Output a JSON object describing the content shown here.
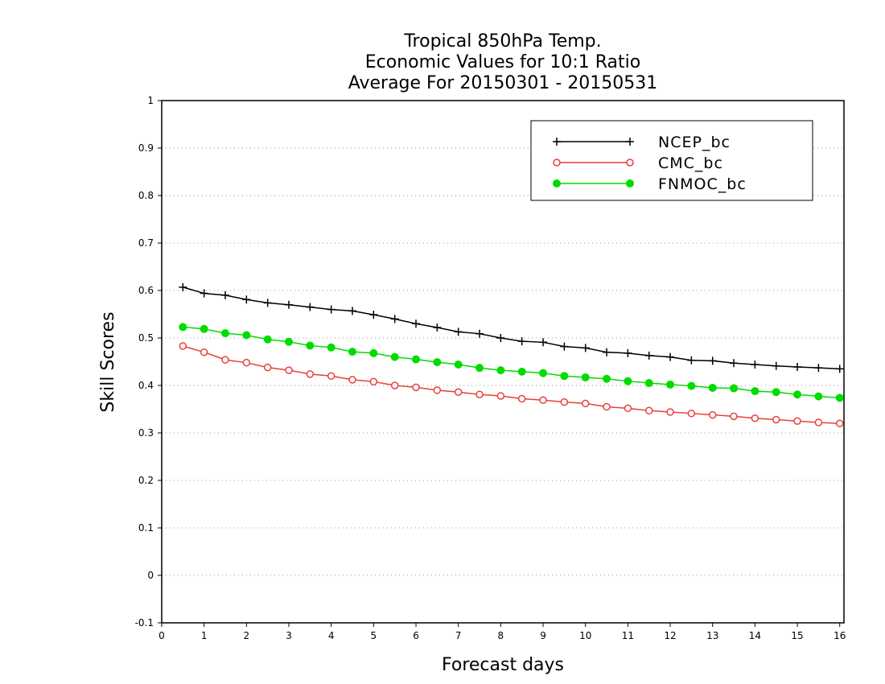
{
  "chart_data": {
    "type": "line",
    "title": [
      "Tropical 850hPa Temp.",
      "Economic Values for 10:1 Ratio",
      "Average For 20150301 - 20150531"
    ],
    "xlabel": "Forecast days",
    "ylabel": "Skill Scores",
    "xlim": [
      0,
      16.1
    ],
    "ylim": [
      -0.1,
      1
    ],
    "xticks": [
      0,
      1,
      2,
      3,
      4,
      5,
      6,
      7,
      8,
      9,
      10,
      11,
      12,
      13,
      14,
      15,
      16
    ],
    "yticks": [
      -0.1,
      0,
      0.1,
      0.2,
      0.3,
      0.4,
      0.5,
      0.6,
      0.7,
      0.8,
      0.9,
      1
    ],
    "ytick_labels": [
      "-0.1",
      "0",
      "0.1",
      "0.2",
      "0.3",
      "0.4",
      "0.5",
      "0.6",
      "0.7",
      "0.8",
      "0.9",
      "1"
    ],
    "grid": "horizontal dotted",
    "legend_position": "top-right",
    "x": [
      0.5,
      1,
      1.5,
      2,
      2.5,
      3,
      3.5,
      4,
      4.5,
      5,
      5.5,
      6,
      6.5,
      7,
      7.5,
      8,
      8.5,
      9,
      9.5,
      10,
      10.5,
      11,
      11.5,
      12,
      12.5,
      13,
      13.5,
      14,
      14.5,
      15,
      15.5,
      16
    ],
    "series": [
      {
        "name": "NCEP_bc",
        "color": "#000000",
        "marker": "plus",
        "values": [
          0.607,
          0.594,
          0.59,
          0.581,
          0.574,
          0.57,
          0.565,
          0.56,
          0.557,
          0.549,
          0.54,
          0.53,
          0.522,
          0.513,
          0.509,
          0.5,
          0.493,
          0.491,
          0.482,
          0.479,
          0.47,
          0.468,
          0.463,
          0.46,
          0.453,
          0.452,
          0.447,
          0.444,
          0.441,
          0.439,
          0.437,
          0.435
        ]
      },
      {
        "name": "CMC_bc",
        "color": "#e8403c",
        "marker": "open-circle",
        "values": [
          0.483,
          0.47,
          0.454,
          0.448,
          0.438,
          0.432,
          0.424,
          0.42,
          0.412,
          0.408,
          0.4,
          0.396,
          0.39,
          0.386,
          0.381,
          0.378,
          0.372,
          0.369,
          0.365,
          0.362,
          0.355,
          0.352,
          0.347,
          0.344,
          0.341,
          0.338,
          0.335,
          0.331,
          0.328,
          0.325,
          0.322,
          0.32
        ]
      },
      {
        "name": "FNMOC_bc",
        "color": "#00dc00",
        "marker": "filled-circle",
        "values": [
          0.523,
          0.519,
          0.51,
          0.506,
          0.497,
          0.492,
          0.484,
          0.48,
          0.471,
          0.468,
          0.46,
          0.455,
          0.449,
          0.444,
          0.437,
          0.432,
          0.429,
          0.426,
          0.42,
          0.417,
          0.414,
          0.409,
          0.405,
          0.402,
          0.399,
          0.395,
          0.394,
          0.388,
          0.386,
          0.381,
          0.377,
          0.374
        ]
      }
    ]
  }
}
